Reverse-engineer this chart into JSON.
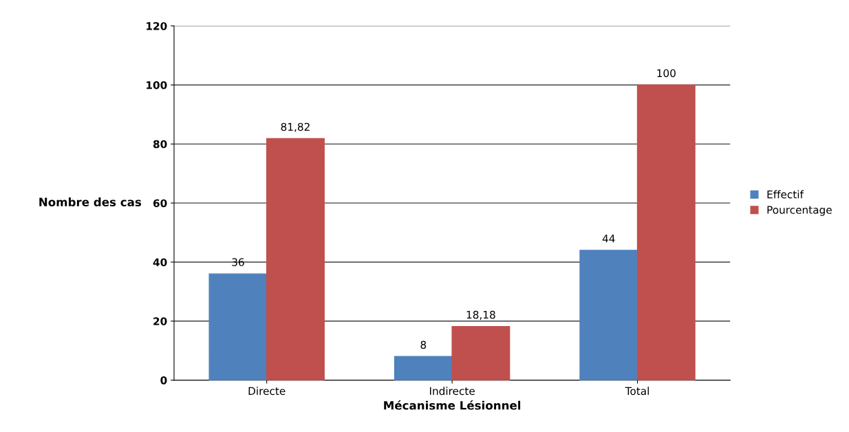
{
  "chart_data": {
    "type": "bar",
    "xlabel": "Mécanisme Lésionnel",
    "ylabel": "Nombre des cas",
    "categories": [
      "Directe",
      "Indirecte",
      "Total"
    ],
    "series": [
      {
        "name": "Effectif",
        "color": "#4f81bd",
        "values": [
          36,
          8,
          44
        ],
        "value_labels": [
          "36",
          "8",
          "44"
        ]
      },
      {
        "name": "Pourcentage",
        "color": "#c0504d",
        "values": [
          81.82,
          18.18,
          100
        ],
        "value_labels": [
          "81,82",
          "18,18",
          "100"
        ]
      }
    ],
    "ylim": [
      0,
      120
    ],
    "yticks": [
      0,
      20,
      40,
      60,
      80,
      100,
      120
    ],
    "grid": "y",
    "legend": "right"
  }
}
